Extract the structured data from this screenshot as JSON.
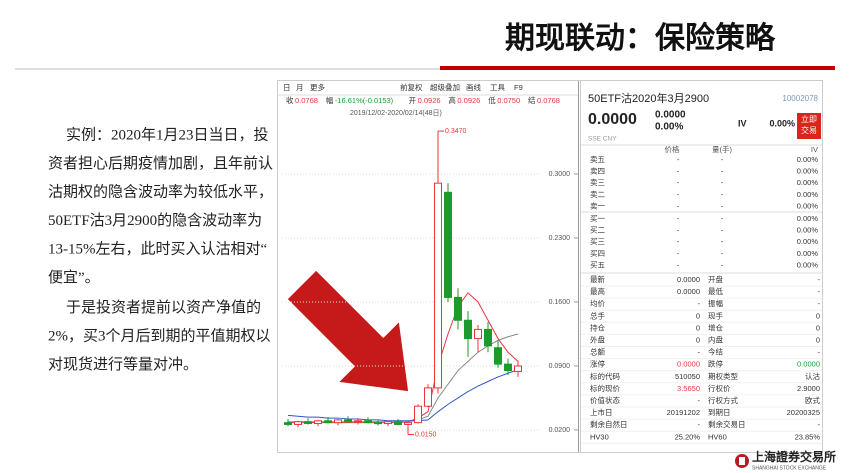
{
  "header": {
    "title": "期现联动：保险策略"
  },
  "body": {
    "paragraphs": [
      {
        "lines": [
          "实例：2020年1月23日当日，投",
          "资者担心后期疫情加剧，且年前认",
          "沽期权的隐含波动率为较低水平，",
          "50ETF沽3月2900的隐含波动率为",
          "13-15%左右，此时买入认沽相对“",
          "便宜”。"
        ]
      },
      {
        "lines": [
          "于是投资者提前以资产净值的",
          "2%，买3个月后到期的平值期权以",
          "对现货进行等量对冲。"
        ]
      }
    ]
  },
  "screenshot": {
    "toolbar": [
      "日",
      "月",
      "更多",
      "前复权",
      "超级叠加",
      "画线",
      "工具",
      "F9"
    ],
    "quote_bar": [
      {
        "label": "收",
        "value": "0.0768"
      },
      {
        "label": "幅",
        "value": "-16.61%(-0.0153)"
      },
      {
        "label": "开",
        "value": "0.0926"
      },
      {
        "label": "高",
        "value": "0.0926"
      },
      {
        "label": "低",
        "value": "0.0750"
      },
      {
        "label": "结",
        "value": "0.0768"
      }
    ],
    "date_range": "2019/12/02-2020/02/14(48日)",
    "chart": {
      "type": "candlestick",
      "ylim": [
        0.009,
        0.381
      ],
      "yticks": [
        {
          "value": 0.02,
          "label": "0.0200"
        },
        {
          "value": 0.09,
          "label": "0.0900"
        },
        {
          "value": 0.16,
          "label": "0.1600"
        },
        {
          "value": 0.23,
          "label": "0.2300"
        },
        {
          "value": 0.3,
          "label": "0.3000"
        }
      ],
      "up_color": "#e8363a",
      "down_color": "#1a9b2b",
      "candles": [
        {
          "open": 0.028,
          "high": 0.032,
          "low": 0.024,
          "close": 0.026
        },
        {
          "open": 0.026,
          "high": 0.03,
          "low": 0.023,
          "close": 0.029
        },
        {
          "open": 0.029,
          "high": 0.033,
          "low": 0.026,
          "close": 0.027
        },
        {
          "open": 0.027,
          "high": 0.031,
          "low": 0.024,
          "close": 0.03
        },
        {
          "open": 0.03,
          "high": 0.034,
          "low": 0.027,
          "close": 0.028
        },
        {
          "open": 0.028,
          "high": 0.032,
          "low": 0.025,
          "close": 0.031
        },
        {
          "open": 0.031,
          "high": 0.035,
          "low": 0.028,
          "close": 0.029
        },
        {
          "open": 0.029,
          "high": 0.033,
          "low": 0.026,
          "close": 0.03
        },
        {
          "open": 0.03,
          "high": 0.034,
          "low": 0.027,
          "close": 0.028
        },
        {
          "open": 0.028,
          "high": 0.031,
          "low": 0.025,
          "close": 0.027
        },
        {
          "open": 0.027,
          "high": 0.03,
          "low": 0.024,
          "close": 0.029
        },
        {
          "open": 0.029,
          "high": 0.032,
          "low": 0.025,
          "close": 0.026
        },
        {
          "open": 0.026,
          "high": 0.029,
          "low": 0.015,
          "close": 0.028
        },
        {
          "open": 0.028,
          "high": 0.048,
          "low": 0.027,
          "close": 0.046
        },
        {
          "open": 0.046,
          "high": 0.07,
          "low": 0.045,
          "close": 0.066
        },
        {
          "open": 0.066,
          "high": 0.347,
          "low": 0.06,
          "close": 0.29
        },
        {
          "open": 0.28,
          "high": 0.29,
          "low": 0.16,
          "close": 0.165
        },
        {
          "open": 0.165,
          "high": 0.175,
          "low": 0.13,
          "close": 0.14
        },
        {
          "open": 0.14,
          "high": 0.15,
          "low": 0.1,
          "close": 0.12
        },
        {
          "open": 0.12,
          "high": 0.135,
          "low": 0.105,
          "close": 0.13
        },
        {
          "open": 0.13,
          "high": 0.138,
          "low": 0.105,
          "close": 0.112
        },
        {
          "open": 0.11,
          "high": 0.118,
          "low": 0.088,
          "close": 0.092
        },
        {
          "open": 0.092,
          "high": 0.098,
          "low": 0.08,
          "close": 0.085
        },
        {
          "open": 0.084,
          "high": 0.096,
          "low": 0.078,
          "close": 0.09
        }
      ],
      "ma_lines": [
        {
          "color": "#e8363a",
          "values": [
            0.028,
            0.028,
            0.028,
            0.028,
            0.028,
            0.028,
            0.028,
            0.028,
            0.028,
            0.028,
            0.028,
            0.028,
            0.029,
            0.033,
            0.04,
            0.09,
            0.125,
            0.155,
            0.17,
            0.16,
            0.14,
            0.12,
            0.105,
            0.095
          ]
        },
        {
          "color": "#888888",
          "values": [
            0.029,
            0.029,
            0.029,
            0.029,
            0.029,
            0.029,
            0.029,
            0.029,
            0.029,
            0.029,
            0.029,
            0.029,
            0.029,
            0.031,
            0.035,
            0.055,
            0.07,
            0.085,
            0.095,
            0.105,
            0.112,
            0.118,
            0.122,
            0.125
          ]
        },
        {
          "color": "#3355cc",
          "values": [
            0.036,
            0.035,
            0.034,
            0.034,
            0.033,
            0.033,
            0.032,
            0.032,
            0.031,
            0.031,
            0.03,
            0.03,
            0.03,
            0.03,
            0.031,
            0.04,
            0.048,
            0.055,
            0.062,
            0.068,
            0.073,
            0.078,
            0.082,
            0.086
          ]
        }
      ],
      "annotations": [
        {
          "value": 0.347,
          "label": "0.3470"
        },
        {
          "value": 0.015,
          "label": "0.0150"
        }
      ]
    },
    "panel": {
      "name": "50ETF沽2020年3月2900",
      "code": "10002078",
      "price": "0.0000",
      "change": "0.0000",
      "change_pct": "0.00%",
      "iv_label": "IV",
      "iv": "0.00%",
      "button": [
        "立即",
        "交易"
      ],
      "market": "SSE CNY",
      "book_header": [
        "价格",
        "量(手)",
        "IV"
      ],
      "asks": [
        {
          "label": "卖五",
          "price": "-",
          "volume": "-",
          "iv": "0.00%"
        },
        {
          "label": "卖四",
          "price": "-",
          "volume": "-",
          "iv": "0.00%"
        },
        {
          "label": "卖三",
          "price": "-",
          "volume": "-",
          "iv": "0.00%"
        },
        {
          "label": "卖二",
          "price": "-",
          "volume": "-",
          "iv": "0.00%"
        },
        {
          "label": "卖一",
          "price": "-",
          "volume": "-",
          "iv": "0.00%"
        }
      ],
      "bids": [
        {
          "label": "买一",
          "price": "-",
          "volume": "-",
          "iv": "0.00%"
        },
        {
          "label": "买二",
          "price": "-",
          "volume": "-",
          "iv": "0.00%"
        },
        {
          "label": "买三",
          "price": "-",
          "volume": "-",
          "iv": "0.00%"
        },
        {
          "label": "买四",
          "price": "-",
          "volume": "-",
          "iv": "0.00%"
        },
        {
          "label": "买五",
          "price": "-",
          "volume": "-",
          "iv": "0.00%"
        }
      ],
      "fields": [
        {
          "l1": "最新",
          "v1": "0.0000",
          "l2": "开盘",
          "v2": "-"
        },
        {
          "l1": "最高",
          "v1": "0.0000",
          "l2": "最低",
          "v2": "-"
        },
        {
          "l1": "均价",
          "v1": "-",
          "l2": "振幅",
          "v2": "-"
        },
        {
          "l1": "总手",
          "v1": "0",
          "l2": "现手",
          "v2": "0"
        },
        {
          "l1": "持仓",
          "v1": "0",
          "l2": "增仓",
          "v2": "0"
        },
        {
          "l1": "外盘",
          "v1": "0",
          "l2": "内盘",
          "v2": "0"
        },
        {
          "l1": "总额",
          "v1": "-",
          "l2": "今结",
          "v2": "-"
        },
        {
          "l1": "涨停",
          "v1": "0.0000",
          "v1_color": "#e8363a",
          "l2": "跌停",
          "v2": "0.0000",
          "v2_color": "#1a9b2b"
        },
        {
          "l1": "标的代码",
          "v1": "510050",
          "l2": "期权类型",
          "v2": "认沽"
        },
        {
          "l1": "标的现价",
          "v1": "3.5650",
          "v1_color": "#e8363a",
          "l2": "行权价",
          "v2": "2.9000"
        },
        {
          "l1": "价值状态",
          "v1": "-",
          "l2": "行权方式",
          "v2": "欧式"
        },
        {
          "l1": "上市日",
          "v1": "20191202",
          "l2": "到期日",
          "v2": "20200325"
        },
        {
          "l1": "剩余自然日",
          "v1": "-",
          "l2": "剩余交易日",
          "v2": "-"
        },
        {
          "l1": "HV30",
          "v1": "25.20%",
          "l2": "HV60",
          "v2": "23.85%"
        }
      ]
    }
  },
  "footer": {
    "logo_cn": "上海證券交易所",
    "logo_en": "SHANGHAI STOCK EXCHANGE"
  }
}
